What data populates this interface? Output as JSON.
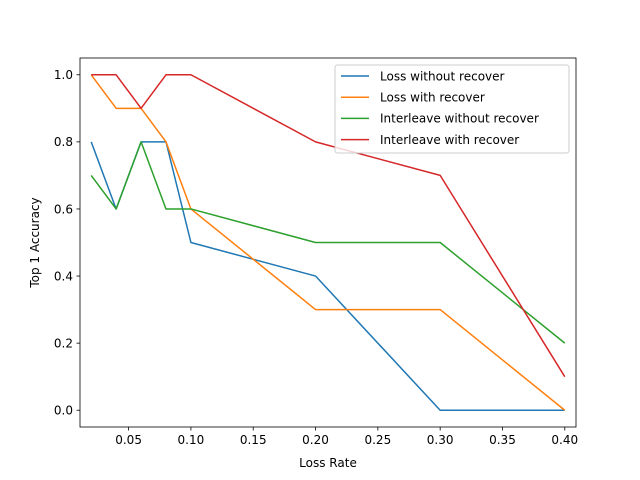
{
  "chart_data": {
    "type": "line",
    "title": "",
    "xlabel": "Loss Rate",
    "ylabel": "Top 1 Accuracy",
    "xlim": [
      0.0,
      0.4
    ],
    "ylim": [
      -0.05,
      1.05
    ],
    "xticks": [
      "0.05",
      "0.10",
      "0.15",
      "0.20",
      "0.25",
      "0.30",
      "0.35",
      "0.40"
    ],
    "yticks": [
      "0.0",
      "0.2",
      "0.4",
      "0.6",
      "0.8",
      "1.0"
    ],
    "grid": false,
    "legend_position": "top-right",
    "x": [
      0.02,
      0.04,
      0.06,
      0.08,
      0.1,
      0.2,
      0.3,
      0.4
    ],
    "series": [
      {
        "name": "Loss without recover",
        "color": "#1f77b4",
        "values": [
          0.8,
          0.6,
          0.8,
          0.8,
          0.5,
          0.4,
          0.0,
          0.0
        ]
      },
      {
        "name": "Loss with recover",
        "color": "#ff7f0e",
        "values": [
          1.0,
          0.9,
          0.9,
          0.8,
          0.6,
          0.3,
          0.3,
          0.0
        ]
      },
      {
        "name": "Interleave without recover",
        "color": "#2ca02c",
        "values": [
          0.7,
          0.6,
          0.8,
          0.6,
          0.6,
          0.5,
          0.5,
          0.2
        ]
      },
      {
        "name": "Interleave with recover",
        "color": "#d62728",
        "values": [
          1.0,
          1.0,
          0.9,
          1.0,
          1.0,
          0.8,
          0.7,
          0.1
        ]
      }
    ]
  }
}
